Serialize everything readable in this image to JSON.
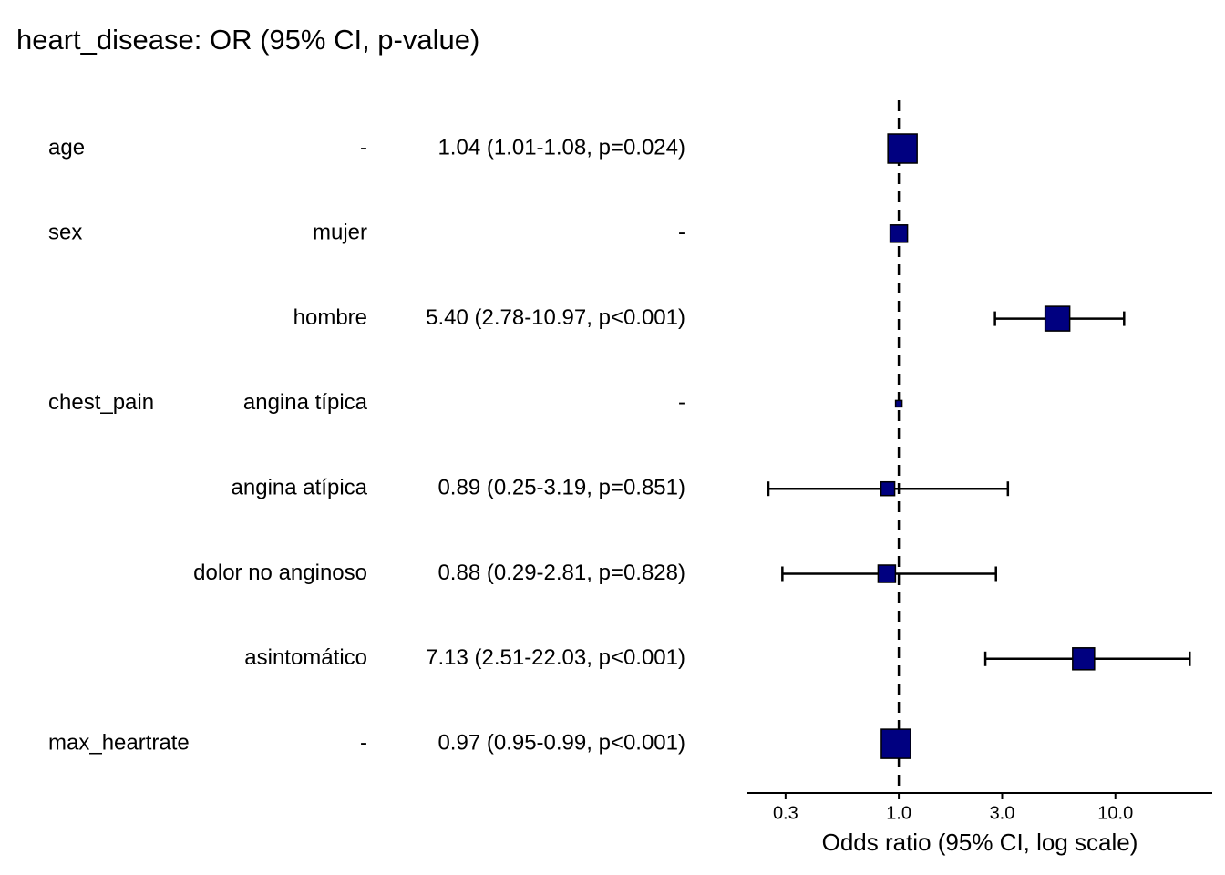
{
  "chart_data": {
    "type": "forest",
    "title": "heart_disease: OR (95% CI, p-value)",
    "x_label": "Odds ratio (95% CI, log scale)",
    "log_x": true,
    "xlim": [
      0.2,
      28
    ],
    "xticks": [
      0.3,
      {
        "value": 1,
        "label": "1.0"
      },
      {
        "value": 3,
        "label": "3.0"
      },
      {
        "value": 10,
        "label": "10.0"
      }
    ],
    "reference": 1,
    "color": "#000080",
    "variables": [
      "age",
      "sex",
      null,
      "chest_pain",
      null,
      null,
      null,
      "max_heartrate"
    ],
    "levels": [
      "-",
      "mujer",
      "hombre",
      "angina típica",
      "angina atípica",
      "dolor no anginoso",
      "asintomático",
      "-"
    ],
    "labels": [
      "1.04 (1.01-1.08, p=0.024)",
      "-",
      "5.40 (2.78-10.97, p<0.001)",
      "-",
      "0.89 (0.25-3.19, p=0.851)",
      "0.88 (0.29-2.81, p=0.828)",
      "7.13 (2.51-22.03, p<0.001)",
      "0.97 (0.95-0.99, p<0.001)"
    ],
    "or": [
      1.04,
      1,
      5.4,
      1,
      0.89,
      0.88,
      7.13,
      0.97
    ],
    "lower": [
      1.01,
      null,
      2.78,
      null,
      0.25,
      0.29,
      2.51,
      0.95
    ],
    "upper": [
      1.08,
      null,
      10.97,
      null,
      3.19,
      2.81,
      22.03,
      0.99
    ],
    "weights": [
      32,
      19,
      27,
      7,
      15,
      19,
      24,
      32
    ]
  }
}
